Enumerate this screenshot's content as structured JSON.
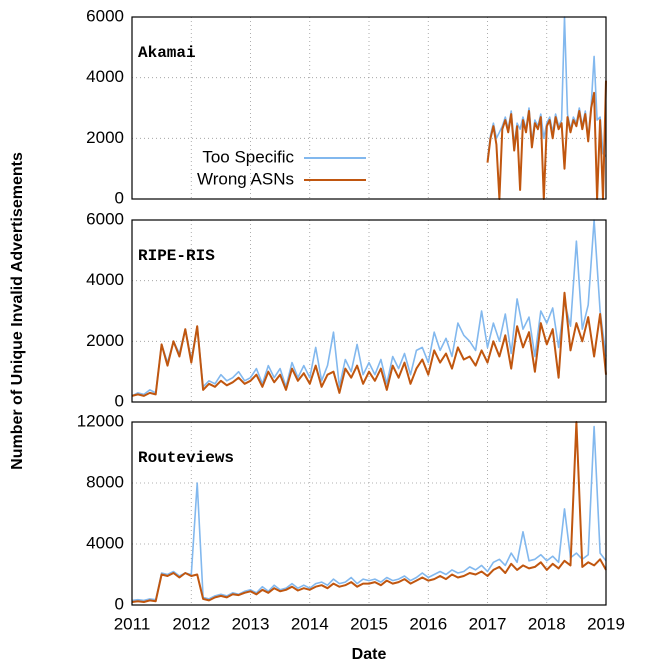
{
  "chart_data": [
    {
      "type": "line",
      "annotation": "Akamai",
      "x": [
        2017,
        2017.05,
        2017.1,
        2017.15,
        2017.2,
        2017.25,
        2017.3,
        2017.35,
        2017.4,
        2017.45,
        2017.5,
        2017.55,
        2017.6,
        2017.65,
        2017.7,
        2017.75,
        2017.8,
        2017.85,
        2017.9,
        2017.95,
        2018,
        2018.05,
        2018.1,
        2018.15,
        2018.2,
        2018.25,
        2018.3,
        2018.35,
        2018.4,
        2018.45,
        2018.5,
        2018.55,
        2018.6,
        2018.65,
        2018.7,
        2018.75,
        2018.8,
        2018.85,
        2018.9,
        2018.95,
        2019
      ],
      "series": [
        {
          "name": "Too Specific",
          "color": "#82b8ee",
          "values": [
            1300,
            2100,
            2500,
            2000,
            2200,
            2400,
            2700,
            2300,
            2900,
            1800,
            2500,
            2300,
            2700,
            2300,
            3000,
            1900,
            2600,
            2400,
            2800,
            2000,
            2500,
            2700,
            2200,
            2800,
            2400,
            2600,
            6000,
            2800,
            2300,
            2700,
            2500,
            3000,
            2400,
            2900,
            2000,
            3100,
            4700,
            2600,
            2700,
            1500,
            1400
          ]
        },
        {
          "name": "Wrong ASNs",
          "color": "#c0560f",
          "values": [
            1200,
            2000,
            2400,
            1800,
            0,
            2300,
            2600,
            2200,
            2800,
            1600,
            2400,
            300,
            2600,
            2200,
            2900,
            1700,
            2500,
            2300,
            2700,
            0,
            2400,
            2600,
            2000,
            2700,
            2300,
            2500,
            1000,
            2700,
            2200,
            2600,
            2400,
            2900,
            2300,
            2800,
            1900,
            3000,
            3500,
            0,
            2600,
            0,
            3900
          ]
        }
      ],
      "xlim": [
        2011,
        2019
      ],
      "xticks": [
        2011,
        2012,
        2013,
        2014,
        2015,
        2016,
        2017,
        2018,
        2019
      ],
      "ylim": [
        0,
        6000
      ],
      "yticks": [
        0,
        2000,
        4000,
        6000
      ],
      "grid": true
    },
    {
      "type": "line",
      "annotation": "RIPE-RIS",
      "ylabel": "Number of Unique Invalid Advertisements",
      "x": [
        2011,
        2011.1,
        2011.2,
        2011.3,
        2011.4,
        2011.5,
        2011.6,
        2011.7,
        2011.8,
        2011.9,
        2012,
        2012.1,
        2012.2,
        2012.3,
        2012.4,
        2012.5,
        2012.6,
        2012.7,
        2012.8,
        2012.9,
        2013,
        2013.1,
        2013.2,
        2013.3,
        2013.4,
        2013.5,
        2013.6,
        2013.7,
        2013.8,
        2013.9,
        2014,
        2014.1,
        2014.2,
        2014.3,
        2014.4,
        2014.5,
        2014.6,
        2014.7,
        2014.8,
        2014.9,
        2015,
        2015.1,
        2015.2,
        2015.3,
        2015.4,
        2015.5,
        2015.6,
        2015.7,
        2015.8,
        2015.9,
        2016,
        2016.1,
        2016.2,
        2016.3,
        2016.4,
        2016.5,
        2016.6,
        2016.7,
        2016.8,
        2016.9,
        2017,
        2017.1,
        2017.2,
        2017.3,
        2017.4,
        2017.5,
        2017.6,
        2017.7,
        2017.8,
        2017.9,
        2018,
        2018.1,
        2018.2,
        2018.3,
        2018.4,
        2018.5,
        2018.6,
        2018.7,
        2018.8,
        2018.9,
        2019
      ],
      "series": [
        {
          "color": "#82b8ee",
          "values": [
            200,
            300,
            250,
            400,
            300,
            1900,
            1300,
            2000,
            1600,
            2400,
            1400,
            2500,
            500,
            700,
            600,
            900,
            700,
            800,
            1000,
            700,
            800,
            1100,
            600,
            1200,
            800,
            1100,
            500,
            1300,
            800,
            1200,
            800,
            1800,
            700,
            1200,
            2300,
            500,
            1400,
            1000,
            1900,
            900,
            1300,
            900,
            1400,
            600,
            1500,
            1100,
            1600,
            900,
            1700,
            1800,
            1300,
            2300,
            1700,
            2100,
            1500,
            2600,
            2200,
            2000,
            1700,
            3000,
            1800,
            2600,
            2000,
            2900,
            1600,
            3400,
            2400,
            2800,
            1500,
            3000,
            2600,
            3100,
            1800,
            3300,
            2500,
            5300,
            2400,
            3200,
            6000,
            3000,
            1500
          ]
        },
        {
          "color": "#c0560f",
          "values": [
            200,
            250,
            200,
            300,
            250,
            1900,
            1200,
            2000,
            1500,
            2400,
            1300,
            2500,
            400,
            600,
            500,
            700,
            550,
            650,
            800,
            600,
            700,
            900,
            500,
            1000,
            650,
            900,
            400,
            1100,
            700,
            950,
            600,
            1200,
            500,
            900,
            1000,
            300,
            1100,
            800,
            1200,
            600,
            1000,
            700,
            1100,
            400,
            1200,
            800,
            1300,
            600,
            1100,
            1400,
            900,
            1700,
            1300,
            1600,
            1100,
            1800,
            1400,
            1500,
            1200,
            1700,
            1300,
            2000,
            1500,
            2200,
            1100,
            2500,
            1800,
            2300,
            1000,
            2600,
            1900,
            2400,
            800,
            3600,
            1700,
            2600,
            2000,
            2800,
            1500,
            2900,
            900
          ]
        }
      ],
      "xlim": [
        2011,
        2019
      ],
      "xticks": [
        2011,
        2012,
        2013,
        2014,
        2015,
        2016,
        2017,
        2018,
        2019
      ],
      "ylim": [
        0,
        6000
      ],
      "yticks": [
        0,
        2000,
        4000,
        6000
      ],
      "grid": true
    },
    {
      "type": "line",
      "annotation": "Routeviews",
      "xlabel": "Date",
      "x": [
        2011,
        2011.1,
        2011.2,
        2011.3,
        2011.4,
        2011.5,
        2011.6,
        2011.7,
        2011.8,
        2011.9,
        2012,
        2012.1,
        2012.2,
        2012.3,
        2012.4,
        2012.5,
        2012.6,
        2012.7,
        2012.8,
        2012.9,
        2013,
        2013.1,
        2013.2,
        2013.3,
        2013.4,
        2013.5,
        2013.6,
        2013.7,
        2013.8,
        2013.9,
        2014,
        2014.1,
        2014.2,
        2014.3,
        2014.4,
        2014.5,
        2014.6,
        2014.7,
        2014.8,
        2014.9,
        2015,
        2015.1,
        2015.2,
        2015.3,
        2015.4,
        2015.5,
        2015.6,
        2015.7,
        2015.8,
        2015.9,
        2016,
        2016.1,
        2016.2,
        2016.3,
        2016.4,
        2016.5,
        2016.6,
        2016.7,
        2016.8,
        2016.9,
        2017,
        2017.1,
        2017.2,
        2017.3,
        2017.4,
        2017.5,
        2017.6,
        2017.7,
        2017.8,
        2017.9,
        2018,
        2018.1,
        2018.2,
        2018.3,
        2018.4,
        2018.5,
        2018.6,
        2018.7,
        2018.8,
        2018.9,
        2019
      ],
      "series": [
        {
          "color": "#82b8ee",
          "values": [
            300,
            350,
            300,
            400,
            350,
            2100,
            2000,
            2200,
            1900,
            2100,
            2000,
            8000,
            500,
            400,
            600,
            700,
            600,
            800,
            700,
            900,
            1000,
            800,
            1200,
            900,
            1300,
            1000,
            1100,
            1400,
            1100,
            1300,
            1100,
            1400,
            1500,
            1300,
            1700,
            1400,
            1500,
            1800,
            1400,
            1700,
            1600,
            1700,
            1500,
            1800,
            1600,
            1700,
            1900,
            1600,
            1800,
            2100,
            1800,
            2000,
            2200,
            2000,
            2300,
            2100,
            2200,
            2500,
            2300,
            2600,
            2200,
            2800,
            3000,
            2600,
            3400,
            2800,
            4800,
            2900,
            3000,
            3300,
            2900,
            3200,
            2800,
            6300,
            3100,
            3400,
            3000,
            3300,
            11700,
            3400,
            2900
          ]
        },
        {
          "color": "#c0560f",
          "values": [
            200,
            250,
            200,
            300,
            250,
            2000,
            1900,
            2100,
            1800,
            2100,
            1900,
            2000,
            400,
            300,
            500,
            600,
            500,
            700,
            650,
            800,
            900,
            700,
            1000,
            800,
            1100,
            900,
            1000,
            1200,
            950,
            1100,
            1000,
            1200,
            1300,
            1100,
            1400,
            1200,
            1300,
            1500,
            1200,
            1400,
            1400,
            1500,
            1300,
            1600,
            1400,
            1500,
            1700,
            1400,
            1600,
            1800,
            1600,
            1700,
            1900,
            1700,
            2000,
            1800,
            1900,
            2100,
            2000,
            2200,
            1900,
            2300,
            2500,
            2100,
            2700,
            2300,
            2600,
            2400,
            2500,
            2800,
            2300,
            2700,
            2400,
            2900,
            2600,
            12000,
            2500,
            2800,
            2600,
            3000,
            2300
          ]
        }
      ],
      "xlim": [
        2011,
        2019
      ],
      "xticks": [
        2011,
        2012,
        2013,
        2014,
        2015,
        2016,
        2017,
        2018,
        2019
      ],
      "ylim": [
        0,
        12000
      ],
      "yticks": [
        0,
        4000,
        8000,
        12000
      ],
      "grid": true
    }
  ]
}
